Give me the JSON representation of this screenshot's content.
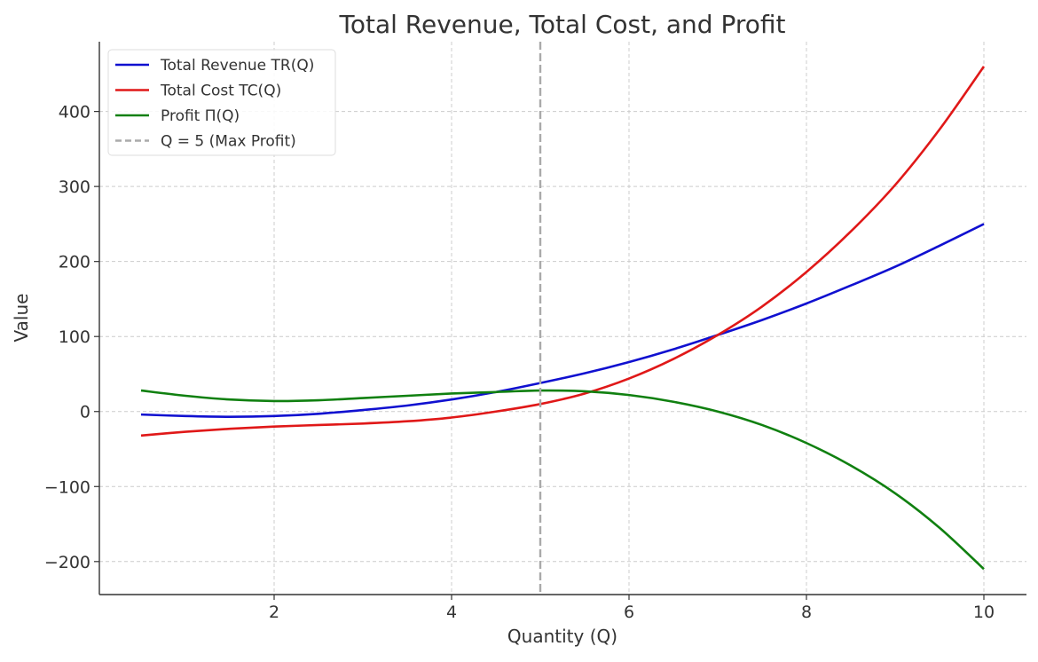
{
  "chart_data": {
    "type": "line",
    "title": "Total Revenue, Total Cost, and Profit",
    "xlabel": "Quantity (Q)",
    "ylabel": "Value",
    "xlim": [
      0.03,
      10.48
    ],
    "ylim": [
      -244,
      493
    ],
    "xticks": [
      2,
      4,
      6,
      8,
      10
    ],
    "yticks": [
      -200,
      -100,
      0,
      100,
      200,
      300,
      400
    ],
    "xtick_labels": [
      "2",
      "4",
      "6",
      "8",
      "10"
    ],
    "ytick_labels": [
      "−200",
      "−100",
      "0",
      "100",
      "200",
      "300",
      "400"
    ],
    "grid": true,
    "legend_placement": "top-left",
    "x": [
      0.5,
      1,
      1.5,
      2,
      2.5,
      3,
      3.5,
      4,
      4.5,
      5,
      5.5,
      6,
      6.5,
      7,
      7.5,
      8,
      8.5,
      9,
      9.5,
      10
    ],
    "series": [
      {
        "name": "Total Revenue TR(Q)",
        "color": "#1010d0",
        "values": [
          -4,
          -6,
          -7,
          -6,
          -3,
          2,
          8,
          16,
          26,
          38,
          51,
          66,
          83,
          102,
          122,
          144,
          168,
          193,
          221,
          250
        ]
      },
      {
        "name": "Total Cost TC(Q)",
        "color": "#e01818",
        "values": [
          -32,
          -27,
          -23,
          -20,
          -18,
          -16,
          -13,
          -8,
          0,
          10,
          24,
          44,
          70,
          102,
          140,
          186,
          240,
          302,
          376,
          460
        ]
      },
      {
        "name": "Profit Π(Q)",
        "color": "#108010",
        "values": [
          28,
          21,
          16,
          14,
          15,
          18,
          21,
          24,
          26,
          28,
          27,
          22,
          13,
          0,
          -18,
          -42,
          -72,
          -109,
          -155,
          -210
        ]
      }
    ],
    "vline": {
      "x": 5,
      "name": "Q = 5 (Max Profit)",
      "color": "#aaaaaa",
      "style": "dashed"
    }
  }
}
